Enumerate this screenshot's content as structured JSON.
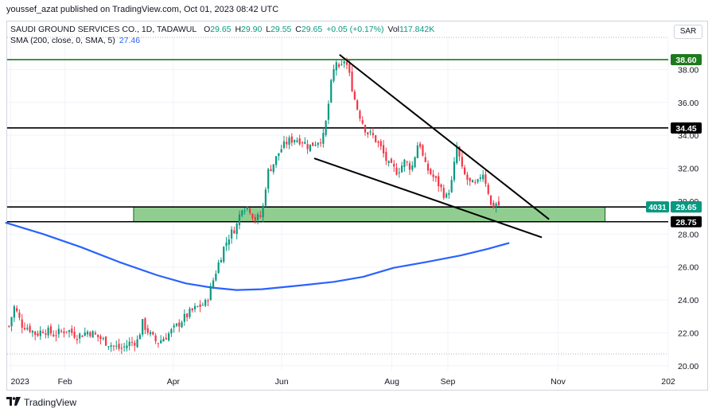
{
  "publisher_line": "youssef_azat published on TradingView.com, Oct 01, 2023 08:42 UTC",
  "legend": {
    "title": "SAUDI GROUND SERVICES CO., 1D, TADAWUL",
    "o_label": "O",
    "o": "29.65",
    "h_label": "H",
    "h": "29.90",
    "l_label": "L",
    "l": "29.55",
    "c_label": "C",
    "c": "29.65",
    "change": "+0.05 (+0.17%)",
    "vol_label": "Vol",
    "vol": "117.842K",
    "sma_label": "SMA (200, close, 0, SMA, 5)",
    "sma_value": "27.46"
  },
  "currency": "SAR",
  "branding": "TradingView",
  "colors": {
    "up": "#089981",
    "down": "#f23645",
    "sma": "#2962ff",
    "resistance": "#1e7a1e",
    "zone": "#7ec47e",
    "trendline": "#000000"
  },
  "chart_data": {
    "type": "candlestick",
    "symbol": "SAUDI GROUND SERVICES CO.",
    "interval": "1D",
    "exchange": "TADAWUL",
    "currency": "SAR",
    "y_ticks": [
      "20.00",
      "22.00",
      "24.00",
      "26.00",
      "28.00",
      "30.00",
      "32.00",
      "34.00",
      "36.00",
      "38.00"
    ],
    "x_ticks": [
      "2023",
      "Feb",
      "Apr",
      "Jun",
      "Aug",
      "Sep",
      "Nov",
      "202"
    ],
    "x_tick_dates": [
      "2023-01-02",
      "2023-02-01",
      "2023-04-02",
      "2023-06-01",
      "2023-08-01",
      "2023-09-01",
      "2023-11-01",
      "2024-01-01"
    ],
    "ylim": [
      19.7,
      40.0
    ],
    "xlim": [
      "2022-12-31",
      "2024-01-01"
    ],
    "horizontal_levels": [
      {
        "label": "38.60",
        "value": 38.6,
        "style": "green"
      },
      {
        "label": "34.45",
        "value": 34.45,
        "style": "black"
      },
      {
        "label": "29.65",
        "value": 29.65,
        "style": "black"
      },
      {
        "label": "28.75",
        "value": 28.75,
        "style": "black"
      }
    ],
    "price_label": {
      "label": "29.65",
      "countdown": "4031"
    },
    "zone": {
      "from": 28.75,
      "to": 29.65,
      "start": "2023-03-11",
      "end": "2023-11-27"
    },
    "trendlines": [
      {
        "from": {
          "date": "2023-07-03",
          "value": 38.9
        },
        "to": {
          "date": "2023-10-27",
          "value": 28.9
        }
      },
      {
        "from": {
          "date": "2023-06-19",
          "value": 32.6
        },
        "to": {
          "date": "2023-10-23",
          "value": 27.8
        }
      }
    ],
    "close_path": [
      [
        "2023-01-01",
        22.4
      ],
      [
        "2023-01-04",
        23.6
      ],
      [
        "2023-01-08",
        22.5
      ],
      [
        "2023-01-12",
        22.3
      ],
      [
        "2023-01-16",
        21.9
      ],
      [
        "2023-01-20",
        22.2
      ],
      [
        "2023-01-26",
        21.9
      ],
      [
        "2023-02-02",
        22.2
      ],
      [
        "2023-02-08",
        21.8
      ],
      [
        "2023-02-14",
        22.1
      ],
      [
        "2023-02-20",
        21.7
      ],
      [
        "2023-02-26",
        21.3
      ],
      [
        "2023-03-04",
        21.0
      ],
      [
        "2023-03-09",
        21.4
      ],
      [
        "2023-03-13",
        21.5
      ],
      [
        "2023-03-16",
        22.6
      ],
      [
        "2023-03-20",
        21.9
      ],
      [
        "2023-03-24",
        21.4
      ],
      [
        "2023-03-29",
        21.8
      ],
      [
        "2023-04-03",
        22.3
      ],
      [
        "2023-04-07",
        22.8
      ],
      [
        "2023-04-12",
        23.3
      ],
      [
        "2023-04-16",
        23.6
      ],
      [
        "2023-04-20",
        23.8
      ],
      [
        "2023-04-23",
        24.8
      ],
      [
        "2023-04-26",
        25.9
      ],
      [
        "2023-04-30",
        27.2
      ],
      [
        "2023-05-03",
        27.9
      ],
      [
        "2023-05-07",
        28.5
      ],
      [
        "2023-05-10",
        29.7
      ],
      [
        "2023-05-14",
        29.6
      ],
      [
        "2023-05-17",
        28.9
      ],
      [
        "2023-05-21",
        29.1
      ],
      [
        "2023-05-24",
        31.7
      ],
      [
        "2023-05-28",
        32.4
      ],
      [
        "2023-05-31",
        33.1
      ],
      [
        "2023-06-04",
        33.6
      ],
      [
        "2023-06-08",
        33.8
      ],
      [
        "2023-06-12",
        33.7
      ],
      [
        "2023-06-16",
        33.3
      ],
      [
        "2023-06-20",
        33.6
      ],
      [
        "2023-06-24",
        33.9
      ],
      [
        "2023-06-26",
        35.1
      ],
      [
        "2023-06-28",
        36.9
      ],
      [
        "2023-07-01",
        38.6
      ],
      [
        "2023-07-03",
        37.8
      ],
      [
        "2023-07-06",
        38.7
      ],
      [
        "2023-07-09",
        37.4
      ],
      [
        "2023-07-12",
        35.9
      ],
      [
        "2023-07-15",
        35.0
      ],
      [
        "2023-07-18",
        34.2
      ],
      [
        "2023-07-22",
        33.9
      ],
      [
        "2023-07-26",
        33.2
      ],
      [
        "2023-07-30",
        32.2
      ],
      [
        "2023-08-04",
        31.8
      ],
      [
        "2023-08-08",
        32.4
      ],
      [
        "2023-08-12",
        32.0
      ],
      [
        "2023-08-16",
        33.8
      ],
      [
        "2023-08-19",
        32.2
      ],
      [
        "2023-08-23",
        31.6
      ],
      [
        "2023-08-27",
        31.0
      ],
      [
        "2023-08-31",
        30.2
      ],
      [
        "2023-09-03",
        31.1
      ],
      [
        "2023-09-06",
        33.3
      ],
      [
        "2023-09-09",
        31.8
      ],
      [
        "2023-09-13",
        31.1
      ],
      [
        "2023-09-17",
        30.9
      ],
      [
        "2023-09-20",
        31.9
      ],
      [
        "2023-09-23",
        30.8
      ],
      [
        "2023-09-25",
        29.6
      ],
      [
        "2023-09-28",
        29.9
      ],
      [
        "2023-09-30",
        29.65
      ]
    ],
    "sma_points": [
      [
        "2022-12-30",
        28.7
      ],
      [
        "2023-01-20",
        28.0
      ],
      [
        "2023-02-10",
        27.2
      ],
      [
        "2023-03-03",
        26.3
      ],
      [
        "2023-03-24",
        25.5
      ],
      [
        "2023-04-09",
        25.0
      ],
      [
        "2023-04-23",
        24.75
      ],
      [
        "2023-05-07",
        24.6
      ],
      [
        "2023-05-21",
        24.65
      ],
      [
        "2023-06-09",
        24.85
      ],
      [
        "2023-06-30",
        25.1
      ],
      [
        "2023-07-16",
        25.4
      ],
      [
        "2023-08-02",
        25.95
      ],
      [
        "2023-08-20",
        26.3
      ],
      [
        "2023-09-08",
        26.7
      ],
      [
        "2023-09-23",
        27.1
      ],
      [
        "2023-10-05",
        27.46
      ]
    ]
  }
}
